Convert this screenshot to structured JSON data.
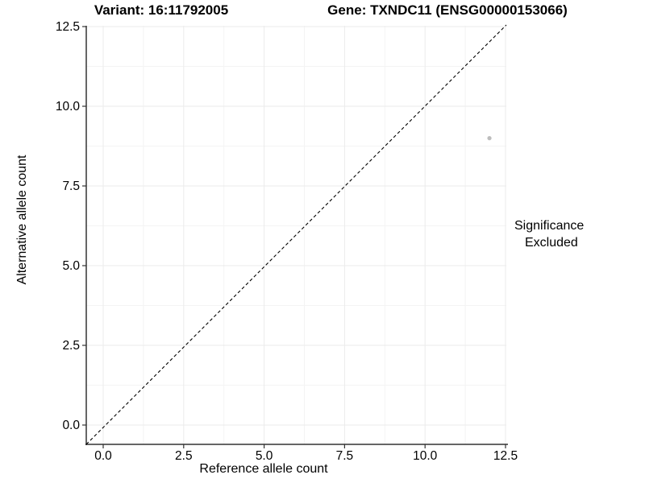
{
  "header": {
    "variant_title": "Variant: 16:11792005",
    "gene_title": "Gene: TXNDC11 (ENSG00000153066)"
  },
  "axes": {
    "xlabel": "Reference allele count",
    "ylabel": "Alternative allele count"
  },
  "legend": {
    "title": "Significance",
    "items": [
      {
        "label": "Excluded",
        "color": "#bdbdbd"
      }
    ]
  },
  "colors": {
    "text": "#000000",
    "axis_line": "#333333",
    "tick_mark": "#333333",
    "grid_major": "#ebebeb",
    "grid_minor": "#f4f4f4",
    "point": "#bdbdbd",
    "identity_line": "#000000",
    "background": "#ffffff"
  },
  "chart_data": {
    "type": "scatter",
    "title_left": "Variant: 16:11792005",
    "title_right": "Gene: TXNDC11 (ENSG00000153066)",
    "xlabel": "Reference allele count",
    "ylabel": "Alternative allele count",
    "xlim": [
      -0.55,
      12.55
    ],
    "ylim": [
      -0.6,
      12.52
    ],
    "x_ticks": [
      0.0,
      2.5,
      5.0,
      7.5,
      10.0,
      12.5
    ],
    "y_ticks": [
      0.0,
      2.5,
      5.0,
      7.5,
      10.0,
      12.5
    ],
    "x_tick_labels": [
      "0.0",
      "2.5",
      "5.0",
      "7.5",
      "10.0",
      "12.5"
    ],
    "y_tick_labels": [
      "0.0",
      "2.5",
      "5.0",
      "7.5",
      "10.0",
      "12.5"
    ],
    "grid": true,
    "legend_position": "right",
    "series": [
      {
        "name": "Excluded",
        "color": "#bdbdbd",
        "points": [
          {
            "x": 12,
            "y": 9
          }
        ]
      }
    ],
    "reference_line": {
      "type": "identity",
      "style": "dashed",
      "color": "#000000"
    }
  }
}
